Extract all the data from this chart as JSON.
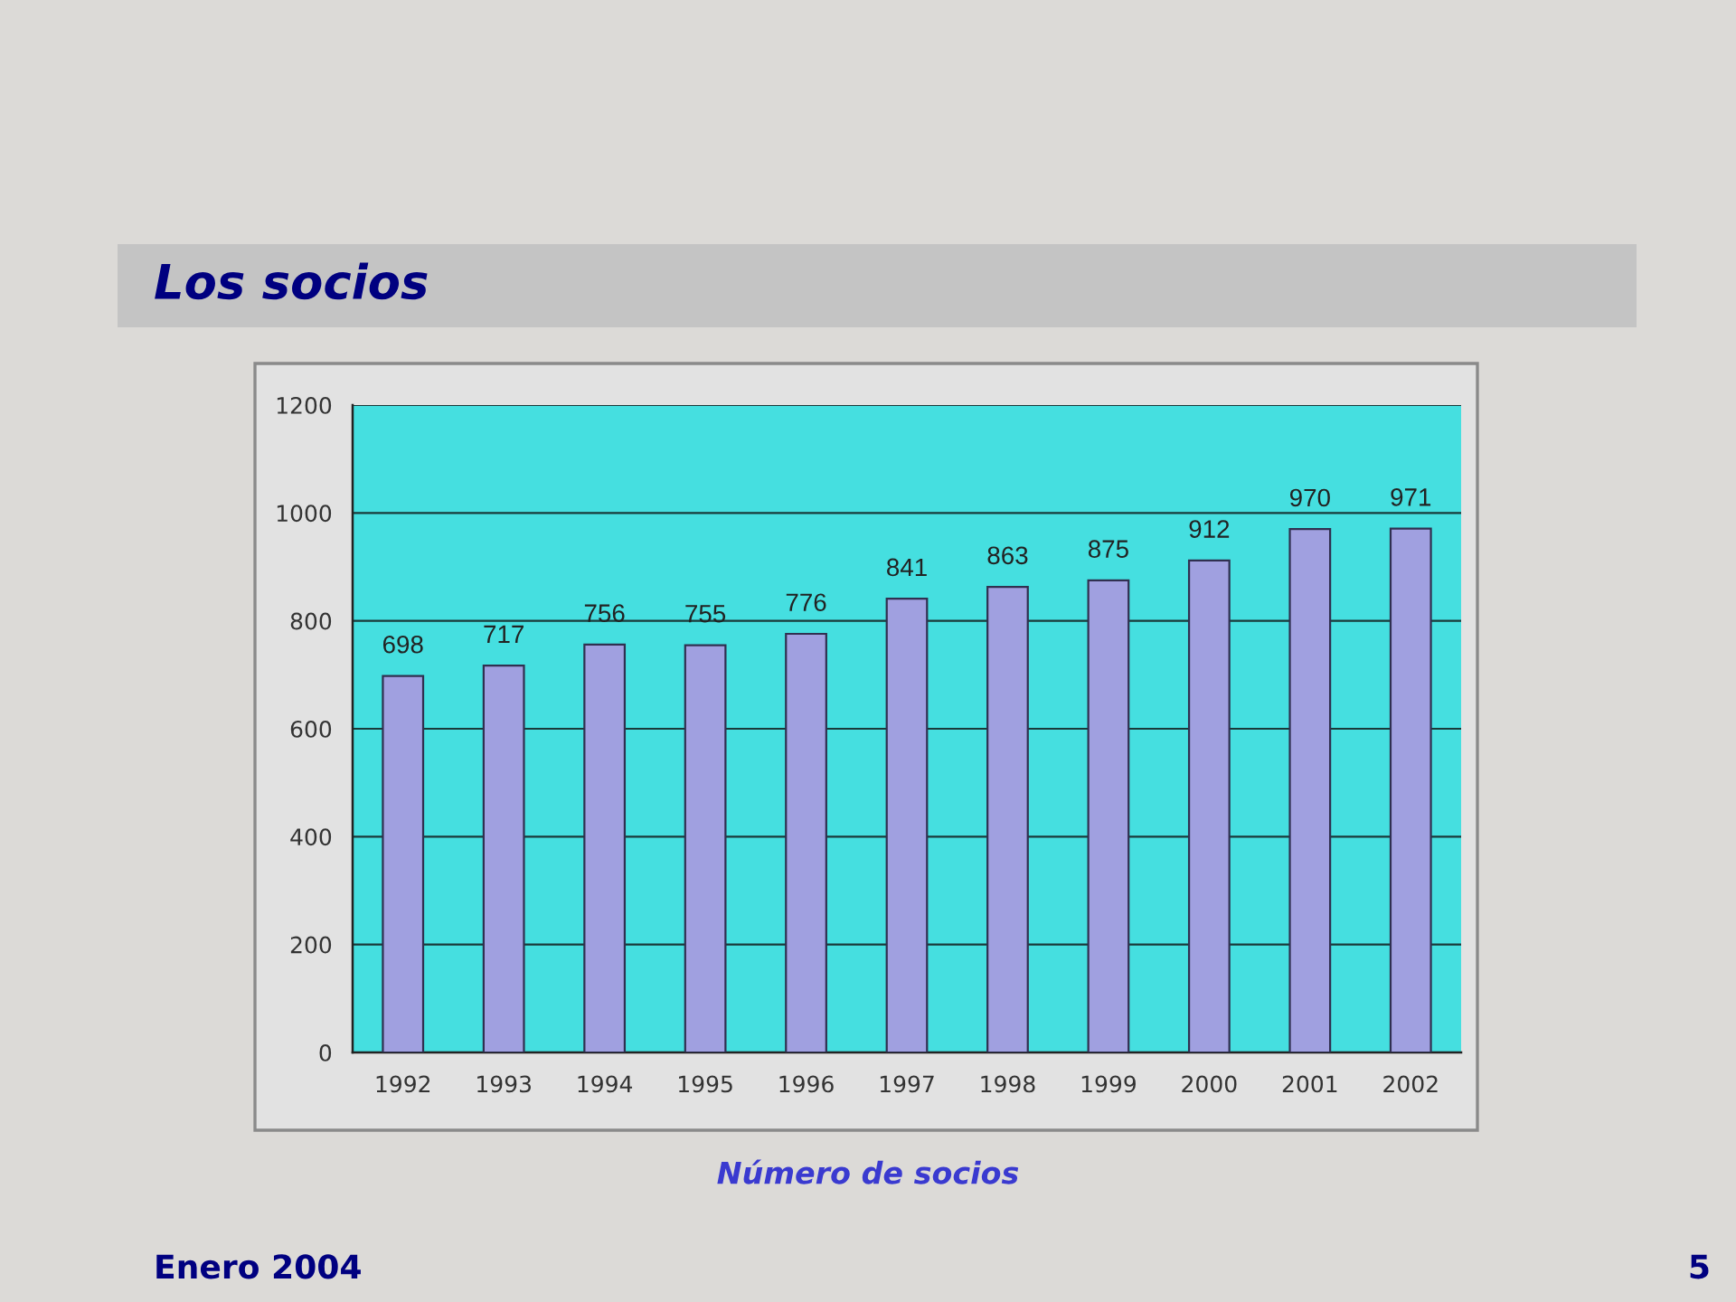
{
  "chart_data": {
    "type": "bar",
    "title": "Los socios",
    "categories": [
      "1992",
      "1993",
      "1994",
      "1995",
      "1996",
      "1997",
      "1998",
      "1999",
      "2000",
      "2001",
      "2002"
    ],
    "values": [
      698,
      717,
      756,
      755,
      776,
      841,
      863,
      875,
      912,
      970,
      971
    ],
    "color": "#a0a0e0",
    "ylim": [
      0,
      1200
    ],
    "yticks": [
      0,
      200,
      400,
      600,
      800,
      1000,
      1200
    ],
    "grid": "y",
    "legend": false,
    "data_labels": true,
    "annotations": [
      "Número de socios",
      "Enero 2004",
      "5"
    ]
  }
}
